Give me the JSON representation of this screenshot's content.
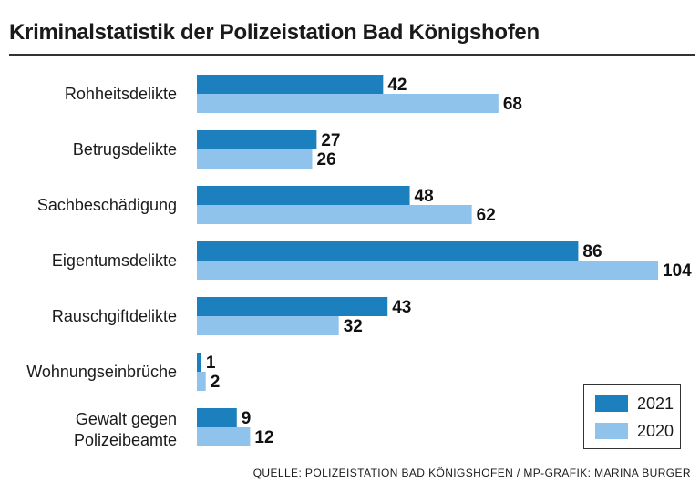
{
  "chart_data": {
    "type": "bar",
    "orientation": "horizontal",
    "title": "Kriminalstatistik der Polizeistation Bad Königshofen",
    "categories": [
      "Rohheitsdelikte",
      "Betrugsdelikte",
      "Sachbeschädigung",
      "Eigentumsdelikte",
      "Rauschgiftdelikte",
      "Wohnungseinbrüche",
      "Gewalt gegen Polizeibeamte"
    ],
    "series": [
      {
        "name": "2021",
        "color": "#1b80bd",
        "values": [
          42,
          27,
          48,
          86,
          43,
          1,
          9
        ]
      },
      {
        "name": "2020",
        "color": "#8fc3ec",
        "values": [
          68,
          26,
          62,
          104,
          32,
          2,
          12
        ]
      }
    ],
    "xlabel": "",
    "ylabel": "",
    "xlim": [
      0,
      104
    ],
    "grid": false,
    "legend_position": "bottom-right",
    "source": "QUELLE: POLIZEISTATION BAD KÖNIGSHOFEN / MP-GRAFIK: MARINA BURGER"
  }
}
